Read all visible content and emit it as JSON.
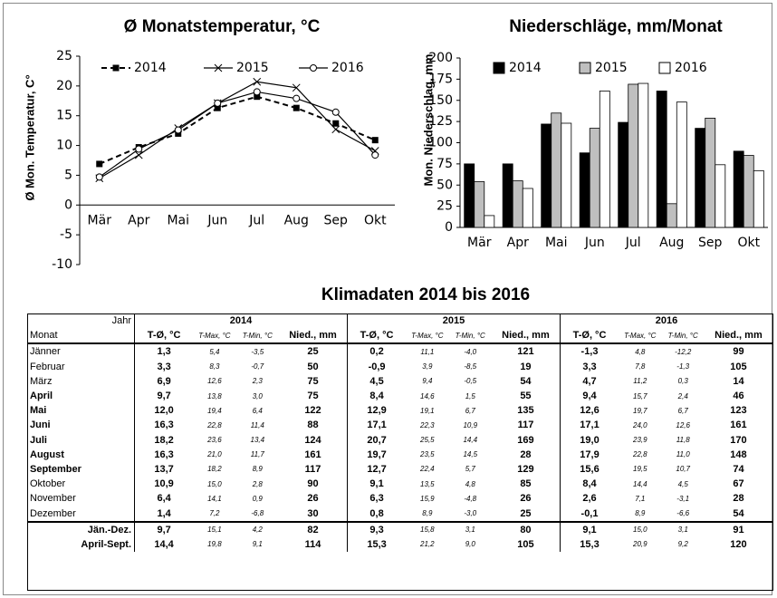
{
  "chart_data": [
    {
      "type": "line",
      "title": "Ø Monatstemperatur, °C",
      "y_label": "Ø Mon. Temperatur, C°",
      "categories": [
        "Mär",
        "Apr",
        "Mai",
        "Jun",
        "Jul",
        "Aug",
        "Sep",
        "Okt"
      ],
      "series": [
        {
          "name": "2014",
          "color": "#000000",
          "marker": "square",
          "dash": true,
          "values": [
            6.9,
            9.7,
            12.0,
            16.3,
            18.2,
            16.3,
            13.7,
            10.9
          ]
        },
        {
          "name": "2015",
          "color": "#000000",
          "marker": "cross",
          "dash": false,
          "values": [
            4.5,
            8.4,
            12.9,
            17.1,
            20.7,
            19.7,
            12.7,
            9.1
          ]
        },
        {
          "name": "2016",
          "color": "#000000",
          "marker": "circle",
          "dash": false,
          "values": [
            4.7,
            9.4,
            12.6,
            17.1,
            19.0,
            17.9,
            15.6,
            8.4
          ]
        }
      ],
      "ylim": [
        -10,
        25
      ],
      "yticks": [
        -10,
        -5,
        0,
        5,
        10,
        15,
        20,
        25
      ],
      "grid": false,
      "legend": "top"
    },
    {
      "type": "bar",
      "title": "Niederschläge, mm/Monat",
      "y_label": "Mon. Niederschlag, mm",
      "categories": [
        "Mär",
        "Apr",
        "Mai",
        "Jun",
        "Jul",
        "Aug",
        "Sep",
        "Okt"
      ],
      "series": [
        {
          "name": "2014",
          "color": "#000000",
          "values": [
            75,
            75,
            122,
            88,
            124,
            161,
            117,
            90
          ]
        },
        {
          "name": "2015",
          "color": "#bfbfbf",
          "values": [
            54,
            55,
            135,
            117,
            169,
            28,
            129,
            85
          ]
        },
        {
          "name": "2016",
          "color": "#ffffff",
          "values": [
            14,
            46,
            123,
            161,
            170,
            148,
            74,
            67
          ]
        }
      ],
      "ylim": [
        0,
        200
      ],
      "yticks": [
        0,
        25,
        50,
        75,
        100,
        125,
        150,
        175,
        200
      ],
      "grid": false,
      "legend": "top"
    }
  ],
  "table": {
    "title": "Klimadaten 2014 bis 2016",
    "header": [
      "Jahr",
      "2014",
      "2015",
      "2016"
    ],
    "columns": [
      "Monat",
      "T-Ø, °C",
      "T-Max, °C",
      "T-Min, °C",
      "Nied., mm",
      "T-Ø, °C",
      "T-Max, °C",
      "T-Min, °C",
      "Nied., mm",
      "T-Ø, °C",
      "T-Max, °C",
      "T-Min, °C",
      "Nied., mm"
    ],
    "rows": [
      [
        "Jänner",
        "1,3",
        "5,4",
        "-3,5",
        "25",
        "0,2",
        "11,1",
        "-4,0",
        "121",
        "-1,3",
        "4,8",
        "-12,2",
        "99"
      ],
      [
        "Februar",
        "3,3",
        "8,3",
        "-0,7",
        "50",
        "-0,9",
        "3,9",
        "-8,5",
        "19",
        "3,3",
        "7,8",
        "-1,3",
        "105"
      ],
      [
        "März",
        "6,9",
        "12,6",
        "2,3",
        "75",
        "4,5",
        "9,4",
        "-0,5",
        "54",
        "4,7",
        "11,2",
        "0,3",
        "14"
      ],
      [
        "April",
        "9,7",
        "13,8",
        "3,0",
        "75",
        "8,4",
        "14,6",
        "1,5",
        "55",
        "9,4",
        "15,7",
        "2,4",
        "46"
      ],
      [
        "Mai",
        "12,0",
        "19,4",
        "6,4",
        "122",
        "12,9",
        "19,1",
        "6,7",
        "135",
        "12,6",
        "19,7",
        "6,7",
        "123"
      ],
      [
        "Juni",
        "16,3",
        "22,8",
        "11,4",
        "88",
        "17,1",
        "22,3",
        "10,9",
        "117",
        "17,1",
        "24,0",
        "12,6",
        "161"
      ],
      [
        "Juli",
        "18,2",
        "23,6",
        "13,4",
        "124",
        "20,7",
        "25,5",
        "14,4",
        "169",
        "19,0",
        "23,9",
        "11,8",
        "170"
      ],
      [
        "August",
        "16,3",
        "21,0",
        "11,7",
        "161",
        "19,7",
        "23,5",
        "14,5",
        "28",
        "17,9",
        "22,8",
        "11,0",
        "148"
      ],
      [
        "September",
        "13,7",
        "18,2",
        "8,9",
        "117",
        "12,7",
        "22,4",
        "5,7",
        "129",
        "15,6",
        "19,5",
        "10,7",
        "74"
      ],
      [
        "Oktober",
        "10,9",
        "15,0",
        "2,8",
        "90",
        "9,1",
        "13,5",
        "4,8",
        "85",
        "8,4",
        "14,4",
        "4,5",
        "67"
      ],
      [
        "November",
        "6,4",
        "14,1",
        "0,9",
        "26",
        "6,3",
        "15,9",
        "-4,8",
        "26",
        "2,6",
        "7,1",
        "-3,1",
        "28"
      ],
      [
        "Dezember",
        "1,4",
        "7,2",
        "-6,8",
        "30",
        "0,8",
        "8,9",
        "-3,0",
        "25",
        "-0,1",
        "8,9",
        "-6,6",
        "54"
      ]
    ],
    "summary_rows": [
      [
        "Jän.-Dez.",
        "9,7",
        "15,1",
        "4,2",
        "82",
        "9,3",
        "15,8",
        "3,1",
        "80",
        "9,1",
        "15,0",
        "3,1",
        "91"
      ],
      [
        "April-Sept.",
        "14,4",
        "19,8",
        "9,1",
        "114",
        "15,3",
        "21,2",
        "9,0",
        "105",
        "15,3",
        "20,9",
        "9,2",
        "120"
      ]
    ]
  }
}
